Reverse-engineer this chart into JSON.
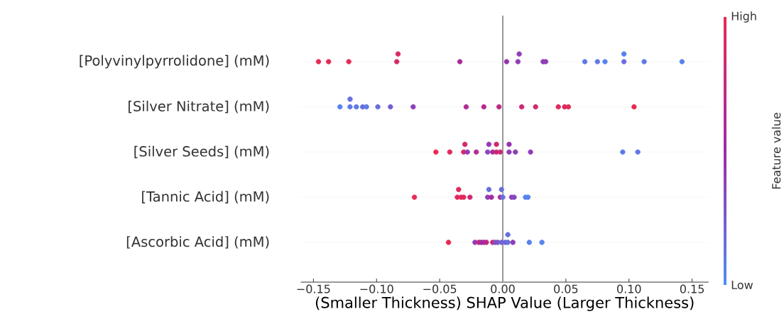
{
  "chart_data": {
    "type": "scatter",
    "orientation": "horizontal",
    "marker": "circle",
    "grid": "y",
    "categories": [
      "[Polyvinylpyrrolidone] (mM)",
      "[Silver Nitrate] (mM)",
      "[Silver Seeds] (mM)",
      "[Tannic Acid] (mM)",
      "[Ascorbic Acid] (mM)"
    ],
    "series": [
      {
        "x": [
          "[Polyvinylpyrrolidone] (mM)",
          "[Polyvinylpyrrolidone] (mM)",
          "[Polyvinylpyrrolidone] (mM)",
          "[Polyvinylpyrrolidone] (mM)",
          "[Polyvinylpyrrolidone] (mM)",
          "[Polyvinylpyrrolidone] (mM)",
          "[Polyvinylpyrrolidone] (mM)",
          "[Polyvinylpyrrolidone] (mM)",
          "[Polyvinylpyrrolidone] (mM)",
          "[Polyvinylpyrrolidone] (mM)",
          "[Polyvinylpyrrolidone] (mM)",
          "[Polyvinylpyrrolidone] (mM)",
          "[Polyvinylpyrrolidone] (mM)",
          "[Polyvinylpyrrolidone] (mM)",
          "[Polyvinylpyrrolidone] (mM)",
          "[Polyvinylpyrrolidone] (mM)",
          "[Polyvinylpyrrolidone] (mM)",
          "[Polyvinylpyrrolidone] (mM)"
        ],
        "values": [
          -0.146,
          -0.138,
          -0.122,
          -0.084,
          -0.083,
          -0.034,
          0.003,
          0.012,
          0.013,
          0.032,
          0.034,
          0.065,
          0.075,
          0.081,
          0.096,
          0.096,
          0.112,
          0.142
        ],
        "colors": [
          "#e72954",
          "#e72954",
          "#e72954",
          "#d82965",
          "#d82965",
          "#ad2a97",
          "#9634b0",
          "#8e3eb7",
          "#8e3eb7",
          "#8e3eb7",
          "#8e3eb7",
          "#5f79e6",
          "#5f79e6",
          "#5783ed",
          "#676fde",
          "#5783ed",
          "#5f79e6",
          "#5783ed"
        ],
        "cvalues": [
          1,
          1,
          1,
          0.9,
          0.9,
          0.6,
          0.45,
          0.4,
          0.4,
          0.4,
          0.4,
          0.1,
          0.1,
          0.05,
          0.15,
          0.05,
          0.1,
          0.05
        ]
      },
      {
        "x": [
          "[Silver Nitrate] (mM)",
          "[Silver Nitrate] (mM)",
          "[Silver Nitrate] (mM)",
          "[Silver Nitrate] (mM)",
          "[Silver Nitrate] (mM)",
          "[Silver Nitrate] (mM)",
          "[Silver Nitrate] (mM)",
          "[Silver Nitrate] (mM)",
          "[Silver Nitrate] (mM)",
          "[Silver Nitrate] (mM)",
          "[Silver Nitrate] (mM)",
          "[Silver Nitrate] (mM)",
          "[Silver Nitrate] (mM)",
          "[Silver Nitrate] (mM)",
          "[Silver Nitrate] (mM)",
          "[Silver Nitrate] (mM)",
          "[Silver Nitrate] (mM)",
          "[Silver Nitrate] (mM)"
        ],
        "values": [
          -0.129,
          -0.121,
          -0.121,
          -0.116,
          -0.111,
          -0.108,
          -0.099,
          -0.089,
          -0.071,
          -0.029,
          -0.015,
          -0.003,
          0.015,
          0.026,
          0.044,
          0.049,
          0.052,
          0.104
        ],
        "colors": [
          "#5783ed",
          "#5f79e6",
          "#676fde",
          "#5f79e6",
          "#676fde",
          "#5f79e6",
          "#676fde",
          "#775ccf",
          "#8e3eb7",
          "#ad2a97",
          "#b42a8f",
          "#bb2a86",
          "#ca2976",
          "#d1296d",
          "#e0295c",
          "#d82965",
          "#e72954",
          "#e72954"
        ],
        "cvalues": [
          0.05,
          0.1,
          0.15,
          0.1,
          0.15,
          0.1,
          0.15,
          0.25,
          0.4,
          0.6,
          0.65,
          0.7,
          0.8,
          0.85,
          0.95,
          0.9,
          1,
          1
        ]
      },
      {
        "x": [
          "[Silver Seeds] (mM)",
          "[Silver Seeds] (mM)",
          "[Silver Seeds] (mM)",
          "[Silver Seeds] (mM)",
          "[Silver Seeds] (mM)",
          "[Silver Seeds] (mM)",
          "[Silver Seeds] (mM)",
          "[Silver Seeds] (mM)",
          "[Silver Seeds] (mM)",
          "[Silver Seeds] (mM)",
          "[Silver Seeds] (mM)",
          "[Silver Seeds] (mM)",
          "[Silver Seeds] (mM)",
          "[Silver Seeds] (mM)",
          "[Silver Seeds] (mM)",
          "[Silver Seeds] (mM)",
          "[Silver Seeds] (mM)",
          "[Silver Seeds] (mM)"
        ],
        "values": [
          -0.053,
          -0.042,
          -0.031,
          -0.03,
          -0.028,
          -0.021,
          -0.012,
          -0.011,
          -0.008,
          -0.005,
          -0.005,
          -0.002,
          0.005,
          0.005,
          0.01,
          0.022,
          0.095,
          0.107
        ],
        "colors": [
          "#e72954",
          "#e0295c",
          "#d82965",
          "#d1296d",
          "#8e3eb7",
          "#b42a8f",
          "#8648bf",
          "#8e3eb7",
          "#ad2a97",
          "#ca2976",
          "#d1296d",
          "#ca2976",
          "#8e3eb7",
          "#9634b0",
          "#8e3eb7",
          "#8e3eb7",
          "#5f79e6",
          "#5f79e6"
        ],
        "cvalues": [
          1,
          0.95,
          0.9,
          0.85,
          0.4,
          0.65,
          0.35,
          0.4,
          0.6,
          0.8,
          0.85,
          0.8,
          0.4,
          0.45,
          0.4,
          0.4,
          0.1,
          0.1
        ]
      },
      {
        "x": [
          "[Tannic Acid] (mM)",
          "[Tannic Acid] (mM)",
          "[Tannic Acid] (mM)",
          "[Tannic Acid] (mM)",
          "[Tannic Acid] (mM)",
          "[Tannic Acid] (mM)",
          "[Tannic Acid] (mM)",
          "[Tannic Acid] (mM)",
          "[Tannic Acid] (mM)",
          "[Tannic Acid] (mM)",
          "[Tannic Acid] (mM)",
          "[Tannic Acid] (mM)",
          "[Tannic Acid] (mM)",
          "[Tannic Acid] (mM)",
          "[Tannic Acid] (mM)",
          "[Tannic Acid] (mM)"
        ],
        "values": [
          -0.07,
          -0.036,
          -0.035,
          -0.033,
          -0.031,
          -0.026,
          -0.012,
          -0.011,
          -0.009,
          -0.002,
          -0.001,
          0.0,
          0.007,
          0.009,
          0.018,
          0.02
        ],
        "colors": [
          "#e72954",
          "#e0295c",
          "#e0295c",
          "#e0295c",
          "#e0295c",
          "#ca2976",
          "#8e3eb7",
          "#676fde",
          "#a52aa0",
          "#ad2a97",
          "#676fde",
          "#676fde",
          "#8e3eb7",
          "#8648bf",
          "#5783ed",
          "#5783ed"
        ],
        "cvalues": [
          1,
          0.95,
          0.95,
          0.95,
          0.95,
          0.8,
          0.4,
          0.15,
          0.55,
          0.6,
          0.15,
          0.15,
          0.4,
          0.35,
          0.05,
          0.05
        ]
      },
      {
        "x": [
          "[Ascorbic Acid] (mM)",
          "[Ascorbic Acid] (mM)",
          "[Ascorbic Acid] (mM)",
          "[Ascorbic Acid] (mM)",
          "[Ascorbic Acid] (mM)",
          "[Ascorbic Acid] (mM)",
          "[Ascorbic Acid] (mM)",
          "[Ascorbic Acid] (mM)",
          "[Ascorbic Acid] (mM)",
          "[Ascorbic Acid] (mM)",
          "[Ascorbic Acid] (mM)",
          "[Ascorbic Acid] (mM)",
          "[Ascorbic Acid] (mM)",
          "[Ascorbic Acid] (mM)",
          "[Ascorbic Acid] (mM)",
          "[Ascorbic Acid] (mM)"
        ],
        "values": [
          -0.043,
          -0.022,
          -0.019,
          -0.017,
          -0.015,
          -0.013,
          -0.008,
          -0.006,
          -0.004,
          -0.001,
          0.002,
          0.004,
          0.004,
          0.008,
          0.021,
          0.031
        ],
        "colors": [
          "#e72954",
          "#8e3eb7",
          "#ca2976",
          "#9e2aa8",
          "#a52aa0",
          "#bb2a86",
          "#d1296d",
          "#7e52c7",
          "#7e52c7",
          "#6f65d6",
          "#6f65d6",
          "#676fde",
          "#676fde",
          "#8e3eb7",
          "#5783ed",
          "#5783ed"
        ],
        "cvalues": [
          1,
          0.4,
          0.8,
          0.5,
          0.55,
          0.7,
          0.85,
          0.3,
          0.3,
          0.2,
          0.2,
          0.15,
          0.15,
          0.4,
          0.05,
          0.05
        ]
      }
    ],
    "xlim": [
      -0.16,
      0.163
    ],
    "xticks": [
      {
        "value": -0.15,
        "label": "−0.15"
      },
      {
        "value": -0.1,
        "label": "−0.10"
      },
      {
        "value": -0.05,
        "label": "−0.05"
      },
      {
        "value": 0,
        "label": "0.00"
      },
      {
        "value": 0.05,
        "label": "0.05"
      },
      {
        "value": 0.1,
        "label": "0.10"
      },
      {
        "value": 0.15,
        "label": "0.15"
      }
    ],
    "xlabel": "(Smaller Thickness)    SHAP Value    (Larger Thickness)",
    "clabel": "Feature value",
    "clim": [
      0,
      1
    ],
    "cticks": [
      {
        "value": 0,
        "label": "Low"
      },
      {
        "value": 1,
        "label": "High"
      }
    ],
    "ref_lines": [
      {
        "axis": "x",
        "value": 0,
        "color": "#999999"
      }
    ]
  }
}
